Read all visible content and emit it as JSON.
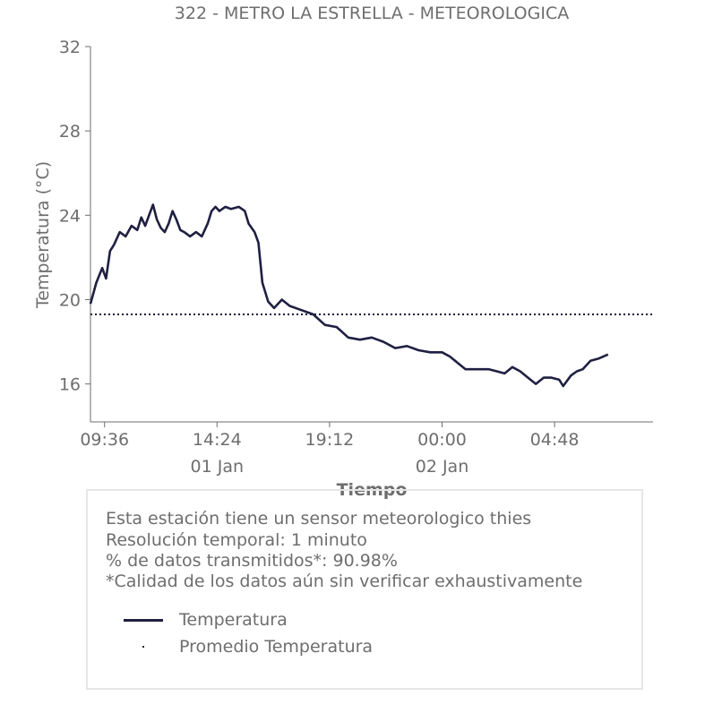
{
  "chart_data": {
    "type": "line",
    "title": "322 - METRO LA ESTRELLA - METEOROLOGICA",
    "xlabel": "Tiempo",
    "ylabel": "Temperatura (°C)",
    "ylim": [
      14.2,
      32
    ],
    "yticks": [
      16,
      20,
      24,
      28,
      32
    ],
    "xlim": [
      "2024-01-01 09:00",
      "2024-01-02 09:00"
    ],
    "xticks": [
      {
        "t": "2024-01-01 09:36",
        "label": "09:36",
        "sublabel": ""
      },
      {
        "t": "2024-01-01 14:24",
        "label": "14:24",
        "sublabel": "01 Jan"
      },
      {
        "t": "2024-01-01 19:12",
        "label": "19:12",
        "sublabel": ""
      },
      {
        "t": "2024-01-02 00:00",
        "label": "00:00",
        "sublabel": "02 Jan"
      },
      {
        "t": "2024-01-02 04:48",
        "label": "04:48",
        "sublabel": ""
      }
    ],
    "grid": false,
    "series": [
      {
        "name": "Temperatura",
        "color": "#1f2041",
        "style": "solid",
        "points": [
          [
            "2024-01-01 09:00",
            19.8
          ],
          [
            "2024-01-01 09:15",
            20.8
          ],
          [
            "2024-01-01 09:30",
            21.5
          ],
          [
            "2024-01-01 09:40",
            21.0
          ],
          [
            "2024-01-01 09:50",
            22.3
          ],
          [
            "2024-01-01 10:00",
            22.6
          ],
          [
            "2024-01-01 10:15",
            23.2
          ],
          [
            "2024-01-01 10:30",
            23.0
          ],
          [
            "2024-01-01 10:45",
            23.5
          ],
          [
            "2024-01-01 11:00",
            23.3
          ],
          [
            "2024-01-01 11:10",
            23.9
          ],
          [
            "2024-01-01 11:20",
            23.5
          ],
          [
            "2024-01-01 11:30",
            24.0
          ],
          [
            "2024-01-01 11:40",
            24.5
          ],
          [
            "2024-01-01 11:50",
            23.8
          ],
          [
            "2024-01-01 12:00",
            23.4
          ],
          [
            "2024-01-01 12:10",
            23.2
          ],
          [
            "2024-01-01 12:20",
            23.6
          ],
          [
            "2024-01-01 12:30",
            24.2
          ],
          [
            "2024-01-01 12:40",
            23.8
          ],
          [
            "2024-01-01 12:50",
            23.3
          ],
          [
            "2024-01-01 13:00",
            23.2
          ],
          [
            "2024-01-01 13:15",
            23.0
          ],
          [
            "2024-01-01 13:30",
            23.2
          ],
          [
            "2024-01-01 13:45",
            23.0
          ],
          [
            "2024-01-01 14:00",
            23.6
          ],
          [
            "2024-01-01 14:10",
            24.2
          ],
          [
            "2024-01-01 14:20",
            24.4
          ],
          [
            "2024-01-01 14:30",
            24.2
          ],
          [
            "2024-01-01 14:45",
            24.4
          ],
          [
            "2024-01-01 15:00",
            24.3
          ],
          [
            "2024-01-01 15:20",
            24.4
          ],
          [
            "2024-01-01 15:35",
            24.2
          ],
          [
            "2024-01-01 15:45",
            23.6
          ],
          [
            "2024-01-01 16:00",
            23.2
          ],
          [
            "2024-01-01 16:10",
            22.7
          ],
          [
            "2024-01-01 16:20",
            20.8
          ],
          [
            "2024-01-01 16:35",
            19.9
          ],
          [
            "2024-01-01 16:50",
            19.6
          ],
          [
            "2024-01-01 17:10",
            20.0
          ],
          [
            "2024-01-01 17:30",
            19.7
          ],
          [
            "2024-01-01 18:00",
            19.5
          ],
          [
            "2024-01-01 18:30",
            19.3
          ],
          [
            "2024-01-01 19:00",
            18.8
          ],
          [
            "2024-01-01 19:30",
            18.7
          ],
          [
            "2024-01-01 20:00",
            18.2
          ],
          [
            "2024-01-01 20:30",
            18.1
          ],
          [
            "2024-01-01 21:00",
            18.2
          ],
          [
            "2024-01-01 21:30",
            18.0
          ],
          [
            "2024-01-01 22:00",
            17.7
          ],
          [
            "2024-01-01 22:30",
            17.8
          ],
          [
            "2024-01-01 23:00",
            17.6
          ],
          [
            "2024-01-01 23:30",
            17.5
          ],
          [
            "2024-01-02 00:00",
            17.5
          ],
          [
            "2024-01-02 00:20",
            17.3
          ],
          [
            "2024-01-02 00:40",
            17.0
          ],
          [
            "2024-01-02 01:00",
            16.7
          ],
          [
            "2024-01-02 01:30",
            16.7
          ],
          [
            "2024-01-02 02:00",
            16.7
          ],
          [
            "2024-01-02 02:20",
            16.6
          ],
          [
            "2024-01-02 02:40",
            16.5
          ],
          [
            "2024-01-02 03:00",
            16.8
          ],
          [
            "2024-01-02 03:20",
            16.6
          ],
          [
            "2024-01-02 03:40",
            16.3
          ],
          [
            "2024-01-02 04:00",
            16.0
          ],
          [
            "2024-01-02 04:20",
            16.3
          ],
          [
            "2024-01-02 04:40",
            16.3
          ],
          [
            "2024-01-02 05:00",
            16.2
          ],
          [
            "2024-01-02 05:10",
            15.9
          ],
          [
            "2024-01-02 05:30",
            16.4
          ],
          [
            "2024-01-02 05:45",
            16.6
          ],
          [
            "2024-01-02 06:00",
            16.7
          ],
          [
            "2024-01-02 06:20",
            17.1
          ],
          [
            "2024-01-02 06:40",
            17.2
          ],
          [
            "2024-01-02 07:05",
            17.4
          ]
        ]
      },
      {
        "name": "Promedio Temperatura",
        "color": "#1f2041",
        "style": "dotted",
        "value": 19.3
      }
    ]
  },
  "info": {
    "line1": "Esta estación tiene un sensor meteorologico thies",
    "line2": "Resolución temporal: 1 minuto",
    "line3": "% de datos transmitidos*: 90.98%",
    "line4": "*Calidad de los datos aún sin verificar exhaustivamente"
  },
  "legend": {
    "items": [
      {
        "label": "Temperatura",
        "marker": "line"
      },
      {
        "label": "Promedio Temperatura",
        "marker": "dot"
      }
    ]
  }
}
